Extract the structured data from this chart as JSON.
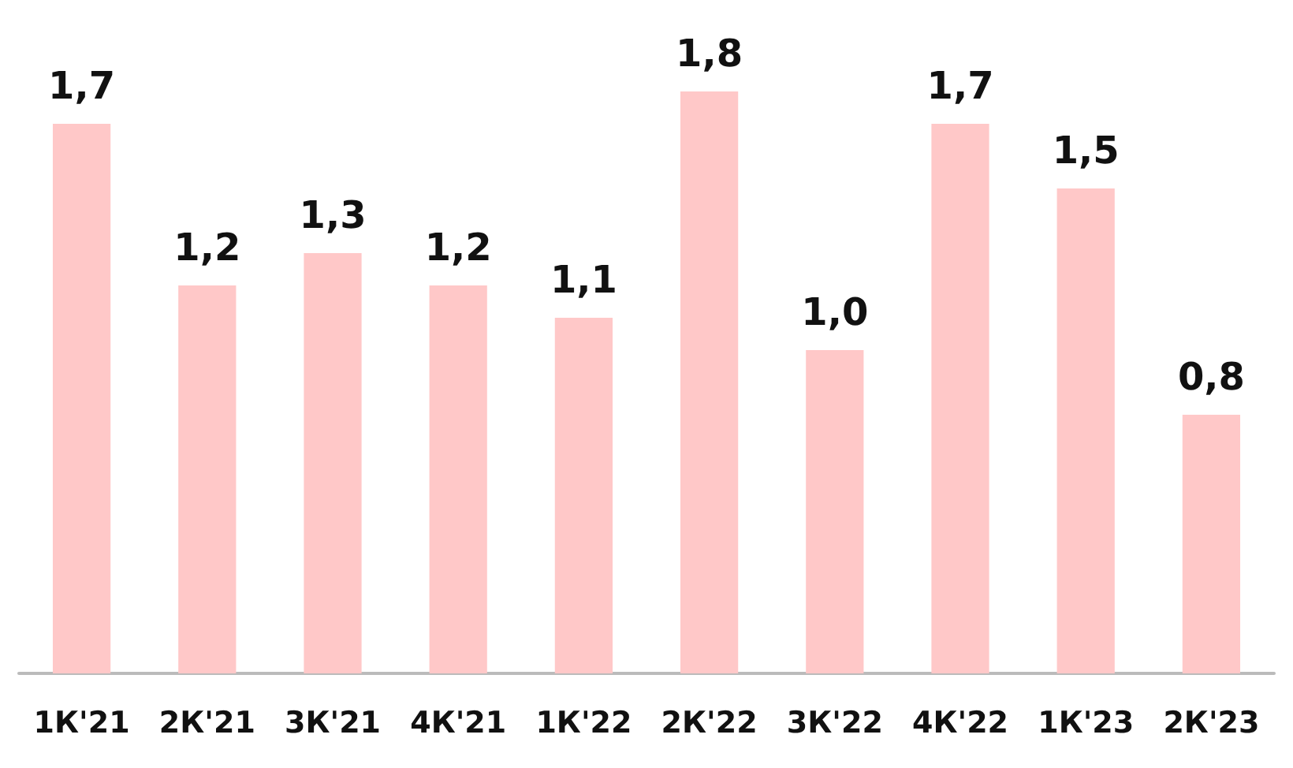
{
  "chart_data": {
    "type": "bar",
    "categories": [
      "1К'21",
      "2К'21",
      "3К'21",
      "4К'21",
      "1К'22",
      "2К'22",
      "3К'22",
      "4К'22",
      "1К'23",
      "2К'23"
    ],
    "values": [
      1.7,
      1.2,
      1.3,
      1.2,
      1.1,
      1.8,
      1.0,
      1.7,
      1.5,
      0.8
    ],
    "value_labels": [
      "1,7",
      "1,2",
      "1,3",
      "1,2",
      "1,1",
      "1,8",
      "1,0",
      "1,7",
      "1,5",
      "0,8"
    ],
    "color": "#ffc8c8"
  }
}
